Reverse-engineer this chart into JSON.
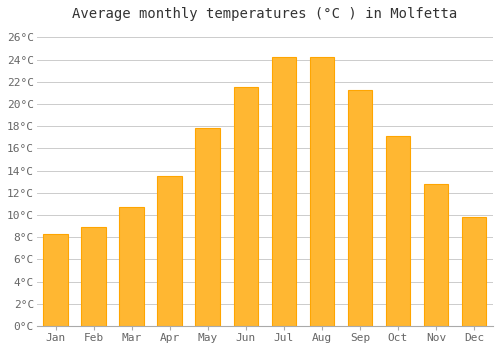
{
  "months": [
    "Jan",
    "Feb",
    "Mar",
    "Apr",
    "May",
    "Jun",
    "Jul",
    "Aug",
    "Sep",
    "Oct",
    "Nov",
    "Dec"
  ],
  "temperatures": [
    8.3,
    8.9,
    10.7,
    13.5,
    17.8,
    21.5,
    24.2,
    24.2,
    21.3,
    17.1,
    12.8,
    9.8
  ],
  "bar_color": "#FFA500",
  "bar_face_color": "#FFB732",
  "title": "Average monthly temperatures (°C ) in Molfetta",
  "ylim": [
    0,
    27
  ],
  "ytick_max": 26,
  "ytick_step": 2,
  "background_color": "#FFFFFF",
  "grid_color": "#CCCCCC",
  "title_fontsize": 10,
  "tick_fontsize": 8,
  "font_family": "monospace"
}
